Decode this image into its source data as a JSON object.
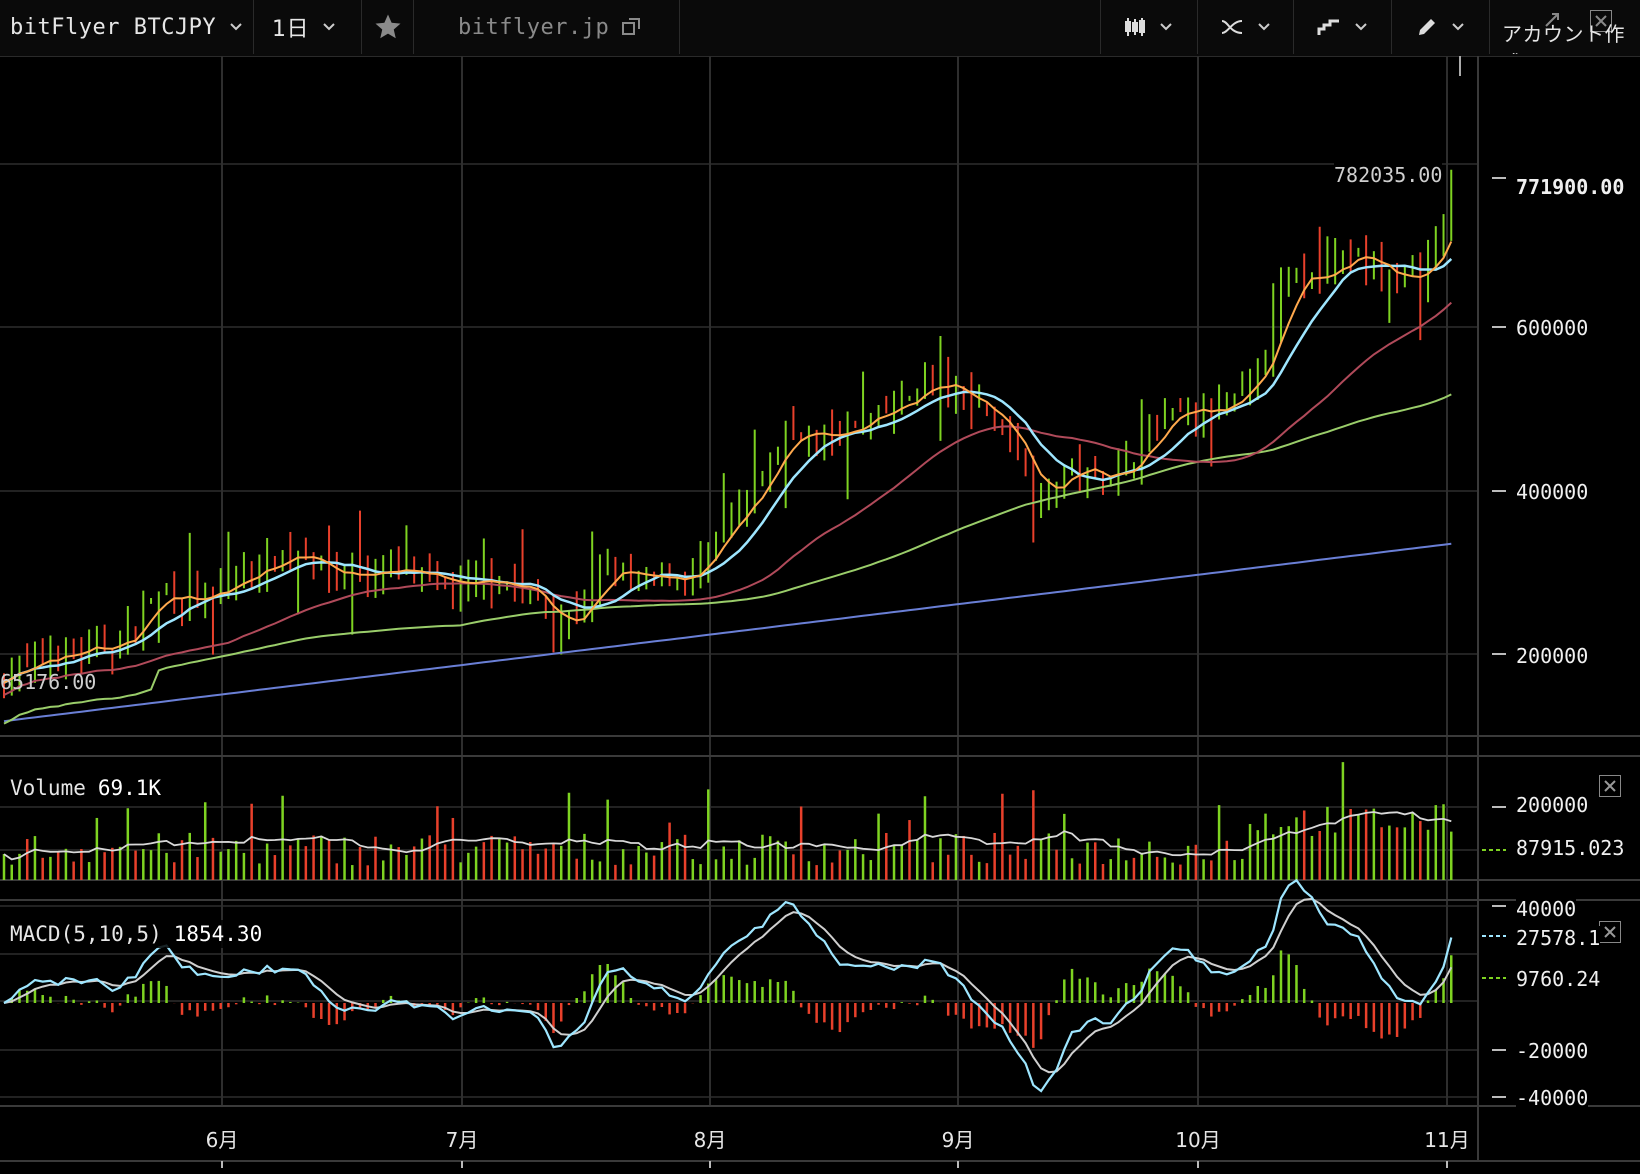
{
  "toolbar": {
    "symbol": "bitFlyer BTCJPY",
    "interval": "1日",
    "link": "bitflyer.jp",
    "account": "アカウント作成"
  },
  "main_pane": {
    "high_label": "782035.00",
    "low_label": "65176.00",
    "last_price_label": "771900.00",
    "y_ticks": [
      "600000",
      "400000",
      "200000"
    ]
  },
  "volume_pane": {
    "title": "Volume",
    "value": "69.1K",
    "y_ticks": [
      "200000"
    ],
    "ma_label": "87915.023"
  },
  "macd_pane": {
    "title": "MACD(5,10,5)",
    "value": "1854.30",
    "y_ticks": [
      "40000",
      "-20000",
      "-40000"
    ],
    "macd_label": "27578.1",
    "signal_label": "9760.24"
  },
  "x_axis": [
    "6月",
    "7月",
    "8月",
    "9月",
    "10月",
    "11月"
  ],
  "colors": {
    "up": "#7ed321",
    "down": "#e8402b",
    "ma_fast": "#ffa94d",
    "ma_slow": "#9ee6ff",
    "ma_50": "#b04a5a",
    "ma_100": "#9acd6a",
    "ma_200": "#6a7fd6",
    "grid": "#2e2e2e"
  },
  "icons": [
    "chevron-down-icon",
    "star-icon",
    "external-link-icon",
    "candlestick-icon",
    "indicator-icon",
    "chart-type-icon",
    "pencil-icon",
    "fullscreen-icon",
    "close-icon"
  ],
  "chart_data": {
    "type": "candlestick",
    "symbol": "bitFlyer BTCJPY",
    "interval": "1日",
    "x_labels": [
      "6月",
      "7月",
      "8月",
      "9月",
      "10月",
      "11月"
    ],
    "price_ylim": [
      100000,
      900000
    ],
    "price_ticks": [
      200000,
      400000,
      600000
    ],
    "high": 782035,
    "low": 65176,
    "last": 771900,
    "price_path": [
      [
        0,
        178000
      ],
      [
        3,
        185000
      ],
      [
        6,
        200000
      ],
      [
        9,
        205000
      ],
      [
        12,
        207000
      ],
      [
        15,
        215000
      ],
      [
        17,
        240000
      ],
      [
        19,
        270000
      ],
      [
        21,
        280000
      ],
      [
        23,
        268000
      ],
      [
        25,
        270000
      ],
      [
        27,
        272000
      ],
      [
        29,
        285000
      ],
      [
        31,
        300000
      ],
      [
        33,
        310000
      ],
      [
        35,
        315000
      ],
      [
        37,
        328000
      ],
      [
        39,
        330000
      ],
      [
        41,
        300000
      ],
      [
        43,
        298000
      ],
      [
        45,
        302000
      ],
      [
        47,
        300000
      ],
      [
        49,
        305000
      ],
      [
        51,
        300000
      ],
      [
        53,
        295000
      ],
      [
        55,
        292000
      ],
      [
        57,
        285000
      ],
      [
        59,
        282000
      ],
      [
        61,
        288000
      ],
      [
        63,
        292000
      ],
      [
        65,
        290000
      ],
      [
        67,
        280000
      ],
      [
        69,
        268000
      ],
      [
        71,
        235000
      ],
      [
        73,
        250000
      ],
      [
        75,
        262000
      ],
      [
        77,
        295000
      ],
      [
        79,
        308000
      ],
      [
        81,
        292000
      ],
      [
        83,
        290000
      ],
      [
        85,
        295000
      ],
      [
        87,
        295000
      ],
      [
        89,
        300000
      ],
      [
        91,
        325000
      ],
      [
        93,
        355000
      ],
      [
        95,
        375000
      ],
      [
        97,
        400000
      ],
      [
        99,
        440000
      ],
      [
        101,
        475000
      ],
      [
        103,
        475000
      ],
      [
        105,
        465000
      ],
      [
        107,
        470000
      ],
      [
        109,
        475000
      ],
      [
        111,
        485000
      ],
      [
        113,
        492000
      ],
      [
        115,
        502000
      ],
      [
        117,
        515000
      ],
      [
        119,
        535000
      ],
      [
        121,
        528000
      ],
      [
        123,
        520000
      ],
      [
        125,
        512000
      ],
      [
        127,
        498000
      ],
      [
        129,
        478000
      ],
      [
        131,
        450000
      ],
      [
        133,
        400000
      ],
      [
        135,
        400000
      ],
      [
        137,
        430000
      ],
      [
        139,
        425000
      ],
      [
        141,
        420000
      ],
      [
        143,
        420000
      ],
      [
        145,
        430000
      ],
      [
        147,
        460000
      ],
      [
        149,
        480000
      ],
      [
        151,
        492000
      ],
      [
        153,
        498000
      ],
      [
        155,
        495000
      ],
      [
        157,
        500000
      ],
      [
        159,
        510000
      ],
      [
        161,
        530000
      ],
      [
        163,
        570000
      ],
      [
        165,
        645000
      ],
      [
        167,
        660000
      ],
      [
        169,
        665000
      ],
      [
        171,
        672000
      ],
      [
        173,
        690000
      ],
      [
        175,
        690000
      ],
      [
        177,
        672000
      ],
      [
        179,
        665000
      ],
      [
        181,
        660000
      ],
      [
        183,
        670000
      ],
      [
        185,
        690000
      ],
      [
        187,
        760000
      ]
    ],
    "moving_averages": [
      {
        "name": "ma_fast",
        "color": "#ffa94d"
      },
      {
        "name": "ma_slow",
        "color": "#9ee6ff"
      },
      {
        "name": "ma_50",
        "color": "#b04a5a"
      },
      {
        "name": "ma_100",
        "color": "#9acd6a"
      },
      {
        "name": "ma_200",
        "color": "#6a7fd6"
      }
    ],
    "volume": {
      "name": "Volume",
      "value": 69100,
      "ma_value": 87915.023,
      "ylim": [
        0,
        260000
      ],
      "ticks": [
        200000
      ]
    },
    "macd": {
      "name": "MACD(5,10,5)",
      "value": 1854.3,
      "macd_last": 27578.1,
      "signal_last": 9760.24,
      "ylim": [
        -45000,
        45000
      ],
      "ticks": [
        40000,
        -20000,
        -40000
      ]
    }
  }
}
